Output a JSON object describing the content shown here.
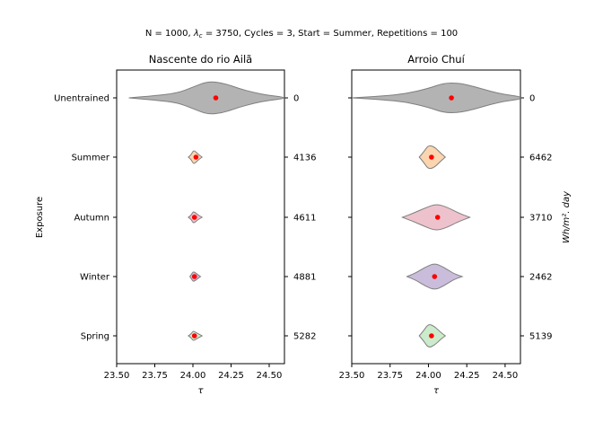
{
  "figure": {
    "suptitle_prefix": "N = 1000, ",
    "suptitle_lambda": "λ",
    "suptitle_lambda_sub": "c",
    "suptitle_suffix": " = 3750, Cycles = 3, Start = Summer, Repetitions = 100",
    "ylabel": "Exposure",
    "right_ylabel": "Wh/m². day"
  },
  "chart_data": [
    {
      "type": "violin",
      "title": "Nascente do rio Ailã",
      "xlabel": "τ",
      "xlim": [
        23.5,
        24.6
      ],
      "xticks": [
        "23.50",
        "23.75",
        "24.00",
        "24.25",
        "24.50"
      ],
      "xtick_values": [
        23.5,
        23.75,
        24.0,
        24.25,
        24.5
      ],
      "categories": [
        "Unentrained",
        "Summer",
        "Autumn",
        "Winter",
        "Spring"
      ],
      "right_labels": [
        "0",
        "4136",
        "4611",
        "4881",
        "5282"
      ],
      "colors": [
        "#a6a6a6",
        "#f9c38f",
        "#e7a8b6",
        "#b3a0cc",
        "#b6e3b6"
      ],
      "violins": [
        {
          "name": "Unentrained",
          "mean": 24.15,
          "profile": [
            [
              23.58,
              0.0
            ],
            [
              23.75,
              0.08
            ],
            [
              23.9,
              0.18
            ],
            [
              24.0,
              0.4
            ],
            [
              24.1,
              0.62
            ],
            [
              24.2,
              0.55
            ],
            [
              24.3,
              0.35
            ],
            [
              24.4,
              0.2
            ],
            [
              24.5,
              0.09
            ],
            [
              24.6,
              0.02
            ]
          ]
        },
        {
          "name": "Summer",
          "mean": 24.02,
          "profile": [
            [
              23.97,
              0.0
            ],
            [
              23.99,
              0.1
            ],
            [
              24.0,
              0.22
            ],
            [
              24.01,
              0.24
            ],
            [
              24.03,
              0.13
            ],
            [
              24.06,
              0.0
            ]
          ]
        },
        {
          "name": "Autumn",
          "mean": 24.01,
          "profile": [
            [
              23.97,
              0.0
            ],
            [
              23.99,
              0.09
            ],
            [
              24.0,
              0.2
            ],
            [
              24.01,
              0.2
            ],
            [
              24.03,
              0.1
            ],
            [
              24.06,
              0.0
            ]
          ]
        },
        {
          "name": "Winter",
          "mean": 24.01,
          "profile": [
            [
              23.98,
              0.0
            ],
            [
              23.99,
              0.08
            ],
            [
              24.0,
              0.17
            ],
            [
              24.01,
              0.17
            ],
            [
              24.03,
              0.08
            ],
            [
              24.05,
              0.0
            ]
          ]
        },
        {
          "name": "Spring",
          "mean": 24.01,
          "profile": [
            [
              23.97,
              0.0
            ],
            [
              23.99,
              0.08
            ],
            [
              24.0,
              0.17
            ],
            [
              24.01,
              0.16
            ],
            [
              24.03,
              0.09
            ],
            [
              24.06,
              0.0
            ]
          ]
        }
      ]
    },
    {
      "type": "violin",
      "title": "Arroio Chuí",
      "xlabel": "τ",
      "xlim": [
        23.5,
        24.6
      ],
      "xticks": [
        "23.50",
        "23.75",
        "24.00",
        "24.25",
        "24.50"
      ],
      "xtick_values": [
        23.5,
        23.75,
        24.0,
        24.25,
        24.5
      ],
      "categories": [
        "Unentrained",
        "Summer",
        "Autumn",
        "Winter",
        "Spring"
      ],
      "right_labels": [
        "0",
        "6462",
        "3710",
        "2462",
        "5139"
      ],
      "colors": [
        "#a6a6a6",
        "#f9c38f",
        "#e7a8b6",
        "#b3a0cc",
        "#b6e3b6"
      ],
      "violins": [
        {
          "name": "Unentrained",
          "mean": 24.15,
          "profile": [
            [
              23.5,
              0.0
            ],
            [
              23.7,
              0.07
            ],
            [
              23.85,
              0.15
            ],
            [
              24.0,
              0.35
            ],
            [
              24.1,
              0.55
            ],
            [
              24.2,
              0.55
            ],
            [
              24.3,
              0.42
            ],
            [
              24.4,
              0.25
            ],
            [
              24.5,
              0.12
            ],
            [
              24.6,
              0.05
            ]
          ]
        },
        {
          "name": "Summer",
          "mean": 24.02,
          "profile": [
            [
              23.94,
              0.0
            ],
            [
              23.97,
              0.2
            ],
            [
              24.0,
              0.45
            ],
            [
              24.04,
              0.38
            ],
            [
              24.08,
              0.15
            ],
            [
              24.11,
              0.0
            ]
          ]
        },
        {
          "name": "Autumn",
          "mean": 24.06,
          "profile": [
            [
              23.83,
              0.0
            ],
            [
              23.9,
              0.15
            ],
            [
              23.98,
              0.35
            ],
            [
              24.05,
              0.5
            ],
            [
              24.12,
              0.38
            ],
            [
              24.2,
              0.15
            ],
            [
              24.27,
              0.0
            ]
          ]
        },
        {
          "name": "Winter",
          "mean": 24.04,
          "profile": [
            [
              23.86,
              0.0
            ],
            [
              23.92,
              0.14
            ],
            [
              23.98,
              0.35
            ],
            [
              24.04,
              0.5
            ],
            [
              24.1,
              0.35
            ],
            [
              24.16,
              0.12
            ],
            [
              24.22,
              0.0
            ]
          ]
        },
        {
          "name": "Spring",
          "mean": 24.02,
          "profile": [
            [
              23.94,
              0.0
            ],
            [
              23.97,
              0.2
            ],
            [
              24.0,
              0.45
            ],
            [
              24.04,
              0.35
            ],
            [
              24.08,
              0.13
            ],
            [
              24.11,
              0.0
            ]
          ]
        }
      ]
    }
  ]
}
